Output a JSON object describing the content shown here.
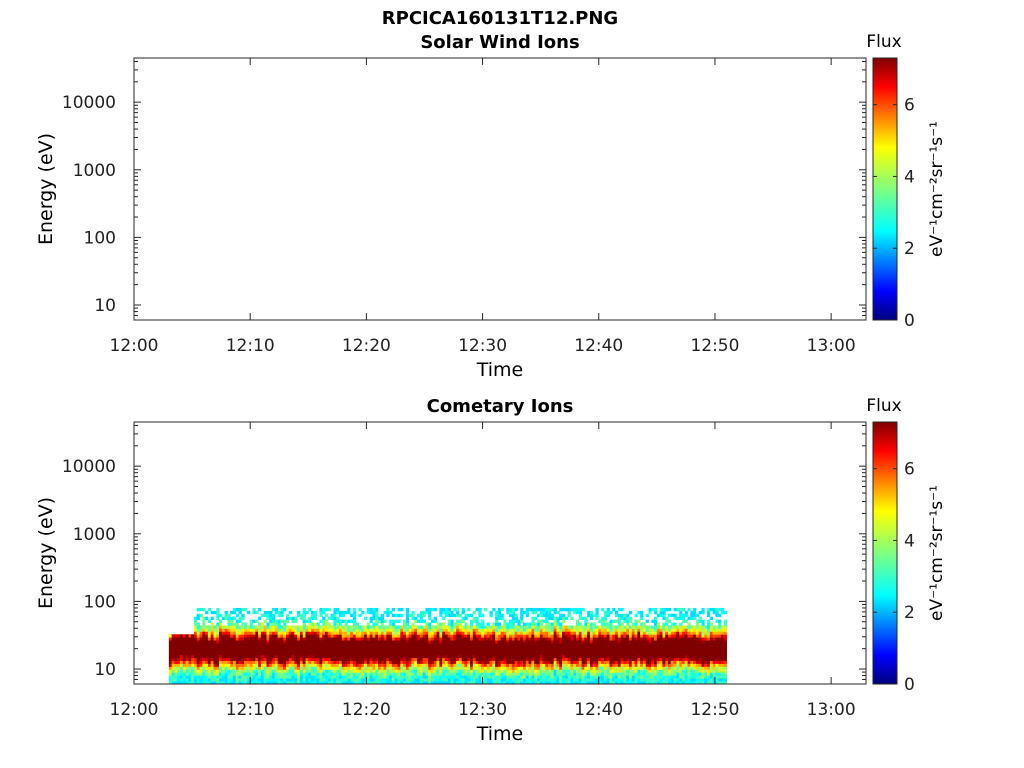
{
  "figure": {
    "title": "RPCICA160131T12.PNG"
  },
  "chart_data": [
    {
      "type": "heatmap",
      "title": "Solar Wind Ions",
      "xlabel": "Time",
      "ylabel": "Energy (eV)",
      "x_ticks": [
        "12:00",
        "12:10",
        "12:20",
        "12:30",
        "12:40",
        "12:50",
        "13:00"
      ],
      "xlim": [
        "12:00",
        "13:03"
      ],
      "y_scale": "log",
      "y_ticks": [
        "10",
        "100",
        "1000",
        "10000"
      ],
      "ylim": [
        6,
        45000
      ],
      "colorbar": {
        "title": "Flux",
        "label": "eV⁻¹cm⁻²sr⁻¹s⁻¹",
        "ticks": [
          "0",
          "2",
          "4",
          "6"
        ],
        "range": [
          0,
          7.3
        ],
        "colormap": "jet"
      },
      "data": {
        "present": false
      }
    },
    {
      "type": "heatmap",
      "title": "Cometary Ions",
      "xlabel": "Time",
      "ylabel": "Energy (eV)",
      "x_ticks": [
        "12:00",
        "12:10",
        "12:20",
        "12:30",
        "12:40",
        "12:50",
        "13:00"
      ],
      "xlim": [
        "12:00",
        "13:03"
      ],
      "y_scale": "log",
      "y_ticks": [
        "10",
        "100",
        "1000",
        "10000"
      ],
      "ylim": [
        6,
        45000
      ],
      "colorbar": {
        "title": "Flux",
        "label": "eV⁻¹cm⁻²sr⁻¹s⁻¹",
        "ticks": [
          "0",
          "2",
          "4",
          "6"
        ],
        "range": [
          0,
          7.3
        ],
        "colormap": "jet"
      },
      "data": {
        "present": true,
        "time_range": [
          "12:03",
          "12:51"
        ],
        "energy_range_eV": [
          6,
          80
        ],
        "peak_energy_eV": 20,
        "peak_flux": 7,
        "notes_intervals": [
          {
            "from": "12:03",
            "to": "12:05",
            "max_energy_eV": 30
          },
          {
            "from": "12:05",
            "to": "12:29",
            "max_energy_eV": 80
          },
          {
            "from": "12:29",
            "to": "12:51",
            "max_energy_eV": 80
          }
        ]
      }
    }
  ]
}
